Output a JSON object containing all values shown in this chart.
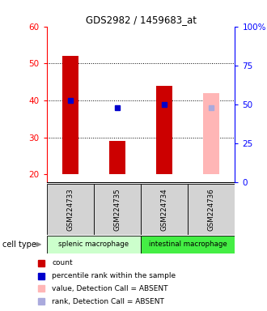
{
  "title": "GDS2982 / 1459683_at",
  "samples": [
    "GSM224733",
    "GSM224735",
    "GSM224734",
    "GSM224736"
  ],
  "bar_values": [
    52,
    29,
    44,
    42
  ],
  "bar_colors": [
    "#cc0000",
    "#cc0000",
    "#cc0000",
    "#ffb6b6"
  ],
  "rank_values": [
    40,
    38,
    39,
    38
  ],
  "rank_colors": [
    "#0000cc",
    "#0000cc",
    "#0000cc",
    "#aaaadd"
  ],
  "ylim_left": [
    18,
    60
  ],
  "ylim_right": [
    0,
    100
  ],
  "yticks_left": [
    20,
    30,
    40,
    50,
    60
  ],
  "ytick_right_labels": [
    "0",
    "25",
    "50",
    "75",
    "100%"
  ],
  "ytick_right_vals": [
    0,
    25,
    50,
    75,
    100
  ],
  "cell_types": [
    {
      "label": "splenic macrophage",
      "start": 0,
      "end": 2,
      "color": "#ccffcc"
    },
    {
      "label": "intestinal macrophage",
      "start": 2,
      "end": 4,
      "color": "#44ee44"
    }
  ],
  "legend_items": [
    {
      "color": "#cc0000",
      "label": "count"
    },
    {
      "color": "#0000cc",
      "label": "percentile rank within the sample"
    },
    {
      "color": "#ffb6b6",
      "label": "value, Detection Call = ABSENT"
    },
    {
      "color": "#aaaadd",
      "label": "rank, Detection Call = ABSENT"
    }
  ],
  "bar_width": 0.35,
  "fig_width": 3.3,
  "fig_height": 3.84,
  "dpi": 100
}
